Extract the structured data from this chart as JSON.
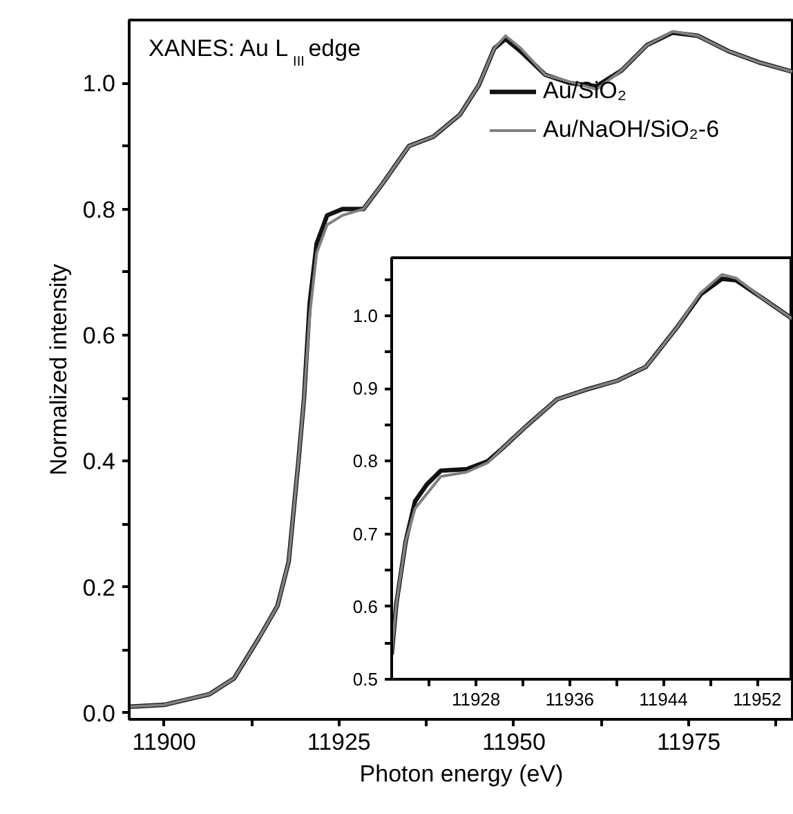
{
  "chart_data": [
    {
      "type": "line",
      "xlabel": "Photon energy (eV)",
      "ylabel": "Normalized intensity",
      "annotations": [
        "XANES: Au L$_{III}$ edge"
      ],
      "xlim": [
        11895,
        11990
      ],
      "ylim": [
        -0.01,
        1.1
      ],
      "xticks": [
        11900,
        {
          "value": 11912.5,
          "label": null
        },
        11925,
        {
          "value": 11937.5,
          "label": null
        },
        11950,
        {
          "value": 11962.5,
          "label": null
        },
        11975,
        {
          "value": 11987.5,
          "label": null
        }
      ],
      "yticks": [
        {
          "value": 0,
          "label": "0.0"
        },
        {
          "value": 0.1,
          "label": null
        },
        {
          "value": 0.2,
          "label": "0.2"
        },
        {
          "value": 0.3,
          "label": null
        },
        {
          "value": 0.4,
          "label": "0.4"
        },
        {
          "value": 0.5,
          "label": null
        },
        {
          "value": 0.6,
          "label": "0.6"
        },
        {
          "value": 0.7,
          "label": null
        },
        {
          "value": 0.8,
          "label": "0.8"
        },
        {
          "value": 0.9,
          "label": null
        },
        {
          "value": 1.0,
          "label": "1.0"
        }
      ],
      "x": [
        11895,
        11900,
        11906.5,
        11910,
        11913.6,
        11916.2,
        11917.8,
        11919.2,
        11920,
        11920.8,
        11921.8,
        11923.3,
        11925.5,
        11928.5,
        11931.2,
        11935,
        11938.5,
        11942.3,
        11945,
        11947.2,
        11948.8,
        11951,
        11954.5,
        11958,
        11961.8,
        11965.4,
        11969,
        11972.7,
        11976.3,
        11980.6,
        11985,
        11989.8
      ],
      "series": [
        {
          "name": "Au/SiO₂",
          "color": "#111111",
          "values": [
            0.01,
            0.013,
            0.03,
            0.055,
            0.12,
            0.17,
            0.24,
            0.4,
            0.5,
            0.65,
            0.745,
            0.79,
            0.8,
            0.8,
            0.84,
            0.9,
            0.915,
            0.95,
            0.997,
            1.055,
            1.07,
            1.05,
            1.013,
            1.0,
            0.995,
            1.02,
            1.06,
            1.08,
            1.075,
            1.051,
            1.033,
            1.018
          ]
        },
        {
          "name": "Au/NaOH/SiO₂-6",
          "color": "#808080",
          "values": [
            0.01,
            0.013,
            0.03,
            0.055,
            0.12,
            0.17,
            0.24,
            0.4,
            0.5,
            0.63,
            0.73,
            0.775,
            0.79,
            0.8,
            0.84,
            0.9,
            0.915,
            0.95,
            0.997,
            1.055,
            1.075,
            1.055,
            1.013,
            1.002,
            0.99,
            1.02,
            1.06,
            1.082,
            1.075,
            1.051,
            1.033,
            1.018
          ]
        }
      ],
      "legend": "top right",
      "marker": "none",
      "line_style": "solid",
      "grid": false
    },
    {
      "type": "line",
      "xlim": [
        11920.8,
        11955
      ],
      "ylim": [
        0.5,
        1.08
      ],
      "xticks": [
        {
          "value": 11924,
          "label": null
        },
        11928,
        {
          "value": 11932,
          "label": null
        },
        11936,
        {
          "value": 11940,
          "label": null
        },
        11944,
        {
          "value": 11948,
          "label": null
        },
        11952
      ],
      "yticks": [
        {
          "value": 0.5,
          "label": "0.5"
        },
        {
          "value": 0.55,
          "label": null
        },
        {
          "value": 0.6,
          "label": "0.6"
        },
        {
          "value": 0.65,
          "label": null
        },
        {
          "value": 0.7,
          "label": "0.7"
        },
        {
          "value": 0.75,
          "label": null
        },
        {
          "value": 0.8,
          "label": "0.8"
        },
        {
          "value": 0.85,
          "label": null
        },
        {
          "value": 0.9,
          "label": "0.9"
        },
        {
          "value": 0.95,
          "label": null
        },
        {
          "value": 1.0,
          "label": "1.0"
        },
        {
          "value": 1.05,
          "label": null
        }
      ],
      "x": [
        11920.8,
        11921.2,
        11922,
        11922.8,
        11923.8,
        11925,
        11927.2,
        11929,
        11930.2,
        11932.2,
        11934.9,
        11937.3,
        11940.1,
        11942.5,
        11943,
        11945.1,
        11947.2,
        11949,
        11950.2,
        11952.4,
        11955
      ],
      "series": [
        {
          "color": "#111111",
          "values": [
            0.534,
            0.604,
            0.69,
            0.745,
            0.768,
            0.787,
            0.789,
            0.8,
            0.817,
            0.847,
            0.885,
            0.898,
            0.911,
            0.93,
            0.94,
            0.983,
            1.03,
            1.051,
            1.049,
            1.025,
            0.996
          ]
        },
        {
          "color": "#808080",
          "values": [
            0.534,
            0.604,
            0.69,
            0.735,
            0.755,
            0.779,
            0.785,
            0.798,
            0.817,
            0.847,
            0.885,
            0.898,
            0.911,
            0.93,
            0.94,
            0.983,
            1.032,
            1.057,
            1.052,
            1.025,
            0.996
          ]
        }
      ],
      "marker": "none",
      "line_style": "solid",
      "grid": false
    }
  ]
}
